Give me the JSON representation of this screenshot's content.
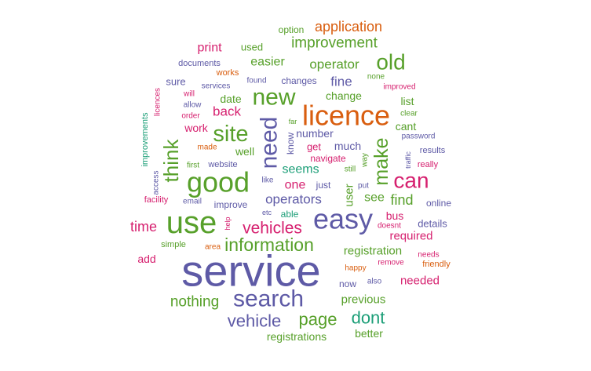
{
  "chart_data": {
    "type": "wordcloud",
    "title": "",
    "palette": {
      "purple": "#5e5aa6",
      "green": "#57a02a",
      "orange": "#d95e0f",
      "pink": "#d6206f",
      "teal": "#1b9e77"
    },
    "words": [
      {
        "text": "service",
        "weight": 1.0,
        "color": "purple",
        "rotate": 0
      },
      {
        "text": "use",
        "weight": 0.62,
        "color": "green",
        "rotate": 0
      },
      {
        "text": "easy",
        "weight": 0.57,
        "color": "purple",
        "rotate": 0
      },
      {
        "text": "good",
        "weight": 0.57,
        "color": "green",
        "rotate": 0
      },
      {
        "text": "licence",
        "weight": 0.57,
        "color": "orange",
        "rotate": 0
      },
      {
        "text": "search",
        "weight": 0.49,
        "color": "purple",
        "rotate": 0
      },
      {
        "text": "need",
        "weight": 0.45,
        "color": "purple",
        "rotate": -90
      },
      {
        "text": "new",
        "weight": 0.45,
        "color": "green",
        "rotate": 0
      },
      {
        "text": "site",
        "weight": 0.42,
        "color": "green",
        "rotate": 0
      },
      {
        "text": "can",
        "weight": 0.4,
        "color": "pink",
        "rotate": 0
      },
      {
        "text": "old",
        "weight": 0.4,
        "color": "green",
        "rotate": 0
      },
      {
        "text": "think",
        "weight": 0.36,
        "color": "green",
        "rotate": -90
      },
      {
        "text": "make",
        "weight": 0.35,
        "color": "green",
        "rotate": -90
      },
      {
        "text": "information",
        "weight": 0.34,
        "color": "green",
        "rotate": 0
      },
      {
        "text": "page",
        "weight": 0.31,
        "color": "green",
        "rotate": 0
      },
      {
        "text": "dont",
        "weight": 0.31,
        "color": "teal",
        "rotate": 0
      },
      {
        "text": "vehicle",
        "weight": 0.31,
        "color": "purple",
        "rotate": 0
      },
      {
        "text": "vehicles",
        "weight": 0.3,
        "color": "pink",
        "rotate": 0
      },
      {
        "text": "nothing",
        "weight": 0.27,
        "color": "green",
        "rotate": 0
      },
      {
        "text": "improvement",
        "weight": 0.27,
        "color": "green",
        "rotate": 0
      },
      {
        "text": "application",
        "weight": 0.25,
        "color": "orange",
        "rotate": 0
      },
      {
        "text": "find",
        "weight": 0.25,
        "color": "green",
        "rotate": 0
      },
      {
        "text": "time",
        "weight": 0.25,
        "color": "pink",
        "rotate": 0
      },
      {
        "text": "back",
        "weight": 0.24,
        "color": "pink",
        "rotate": 0
      },
      {
        "text": "fine",
        "weight": 0.24,
        "color": "purple",
        "rotate": 0
      },
      {
        "text": "operators",
        "weight": 0.23,
        "color": "purple",
        "rotate": 0
      },
      {
        "text": "operator",
        "weight": 0.23,
        "color": "green",
        "rotate": 0
      },
      {
        "text": "easier",
        "weight": 0.22,
        "color": "green",
        "rotate": 0
      },
      {
        "text": "one",
        "weight": 0.22,
        "color": "pink",
        "rotate": 0
      },
      {
        "text": "seems",
        "weight": 0.22,
        "color": "teal",
        "rotate": 0
      },
      {
        "text": "print",
        "weight": 0.22,
        "color": "pink",
        "rotate": 0
      },
      {
        "text": "see",
        "weight": 0.22,
        "color": "green",
        "rotate": 0
      },
      {
        "text": "user",
        "weight": 0.2,
        "color": "green",
        "rotate": -90
      },
      {
        "text": "previous",
        "weight": 0.2,
        "color": "green",
        "rotate": 0
      },
      {
        "text": "needed",
        "weight": 0.2,
        "color": "pink",
        "rotate": 0
      },
      {
        "text": "required",
        "weight": 0.2,
        "color": "pink",
        "rotate": 0
      },
      {
        "text": "registration",
        "weight": 0.19,
        "color": "green",
        "rotate": 0
      },
      {
        "text": "registrations",
        "weight": 0.19,
        "color": "green",
        "rotate": 0
      },
      {
        "text": "better",
        "weight": 0.19,
        "color": "green",
        "rotate": 0
      },
      {
        "text": "date",
        "weight": 0.19,
        "color": "green",
        "rotate": 0
      },
      {
        "text": "change",
        "weight": 0.19,
        "color": "green",
        "rotate": 0
      },
      {
        "text": "list",
        "weight": 0.19,
        "color": "green",
        "rotate": 0
      },
      {
        "text": "cant",
        "weight": 0.19,
        "color": "green",
        "rotate": 0
      },
      {
        "text": "work",
        "weight": 0.19,
        "color": "pink",
        "rotate": 0
      },
      {
        "text": "well",
        "weight": 0.19,
        "color": "green",
        "rotate": 0
      },
      {
        "text": "number",
        "weight": 0.19,
        "color": "purple",
        "rotate": 0
      },
      {
        "text": "much",
        "weight": 0.19,
        "color": "purple",
        "rotate": 0
      },
      {
        "text": "bus",
        "weight": 0.19,
        "color": "pink",
        "rotate": 0
      },
      {
        "text": "add",
        "weight": 0.19,
        "color": "pink",
        "rotate": 0
      },
      {
        "text": "details",
        "weight": 0.18,
        "color": "purple",
        "rotate": 0
      },
      {
        "text": "sure",
        "weight": 0.18,
        "color": "purple",
        "rotate": 0
      },
      {
        "text": "used",
        "weight": 0.17,
        "color": "green",
        "rotate": 0
      },
      {
        "text": "get",
        "weight": 0.17,
        "color": "pink",
        "rotate": 0
      },
      {
        "text": "able",
        "weight": 0.17,
        "color": "teal",
        "rotate": 0
      },
      {
        "text": "just",
        "weight": 0.17,
        "color": "purple",
        "rotate": 0
      },
      {
        "text": "improve",
        "weight": 0.16,
        "color": "purple",
        "rotate": 0
      },
      {
        "text": "now",
        "weight": 0.16,
        "color": "purple",
        "rotate": 0
      },
      {
        "text": "changes",
        "weight": 0.16,
        "color": "purple",
        "rotate": 0
      },
      {
        "text": "option",
        "weight": 0.16,
        "color": "green",
        "rotate": 0
      },
      {
        "text": "know",
        "weight": 0.16,
        "color": "purple",
        "rotate": -90
      },
      {
        "text": "online",
        "weight": 0.15,
        "color": "purple",
        "rotate": 0
      },
      {
        "text": "navigate",
        "weight": 0.15,
        "color": "pink",
        "rotate": 0
      },
      {
        "text": "simple",
        "weight": 0.14,
        "color": "green",
        "rotate": 0
      },
      {
        "text": "documents",
        "weight": 0.14,
        "color": "purple",
        "rotate": 0
      },
      {
        "text": "results",
        "weight": 0.14,
        "color": "purple",
        "rotate": 0
      },
      {
        "text": "website",
        "weight": 0.14,
        "color": "purple",
        "rotate": 0
      },
      {
        "text": "improvements",
        "weight": 0.14,
        "color": "teal",
        "rotate": -90
      },
      {
        "text": "facility",
        "weight": 0.14,
        "color": "pink",
        "rotate": 0
      },
      {
        "text": "friendly",
        "weight": 0.14,
        "color": "orange",
        "rotate": 0
      },
      {
        "text": "really",
        "weight": 0.14,
        "color": "pink",
        "rotate": 0
      },
      {
        "text": "works",
        "weight": 0.14,
        "color": "orange",
        "rotate": 0
      },
      {
        "text": "found",
        "weight": 0.13,
        "color": "purple",
        "rotate": 0
      },
      {
        "text": "order",
        "weight": 0.13,
        "color": "pink",
        "rotate": 0
      },
      {
        "text": "like",
        "weight": 0.13,
        "color": "purple",
        "rotate": 0
      },
      {
        "text": "way",
        "weight": 0.13,
        "color": "green",
        "rotate": -90
      },
      {
        "text": "password",
        "weight": 0.13,
        "color": "purple",
        "rotate": 0
      },
      {
        "text": "licences",
        "weight": 0.13,
        "color": "pink",
        "rotate": -90
      },
      {
        "text": "allow",
        "weight": 0.13,
        "color": "purple",
        "rotate": 0
      },
      {
        "text": "will",
        "weight": 0.13,
        "color": "pink",
        "rotate": 0
      },
      {
        "text": "none",
        "weight": 0.12,
        "color": "green",
        "rotate": 0
      },
      {
        "text": "clear",
        "weight": 0.12,
        "color": "green",
        "rotate": 0
      },
      {
        "text": "access",
        "weight": 0.12,
        "color": "purple",
        "rotate": -90
      },
      {
        "text": "still",
        "weight": 0.12,
        "color": "green",
        "rotate": 0
      },
      {
        "text": "put",
        "weight": 0.12,
        "color": "purple",
        "rotate": 0
      },
      {
        "text": "area",
        "weight": 0.12,
        "color": "orange",
        "rotate": 0
      },
      {
        "text": "needs",
        "weight": 0.12,
        "color": "pink",
        "rotate": 0
      },
      {
        "text": "remove",
        "weight": 0.12,
        "color": "pink",
        "rotate": 0
      },
      {
        "text": "doesnt",
        "weight": 0.12,
        "color": "pink",
        "rotate": 0
      },
      {
        "text": "first",
        "weight": 0.11,
        "color": "green",
        "rotate": 0
      },
      {
        "text": "improved",
        "weight": 0.11,
        "color": "pink",
        "rotate": 0
      },
      {
        "text": "email",
        "weight": 0.11,
        "color": "purple",
        "rotate": 0
      },
      {
        "text": "services",
        "weight": 0.11,
        "color": "purple",
        "rotate": 0
      },
      {
        "text": "also",
        "weight": 0.11,
        "color": "purple",
        "rotate": 0
      },
      {
        "text": "made",
        "weight": 0.11,
        "color": "orange",
        "rotate": 0
      },
      {
        "text": "happy",
        "weight": 0.11,
        "color": "orange",
        "rotate": 0
      },
      {
        "text": "far",
        "weight": 0.1,
        "color": "green",
        "rotate": 0
      },
      {
        "text": "help",
        "weight": 0.1,
        "color": "pink",
        "rotate": -90
      },
      {
        "text": "etc",
        "weight": 0.1,
        "color": "purple",
        "rotate": 0
      },
      {
        "text": "traffic",
        "weight": 0.1,
        "color": "purple",
        "rotate": -90
      }
    ]
  }
}
